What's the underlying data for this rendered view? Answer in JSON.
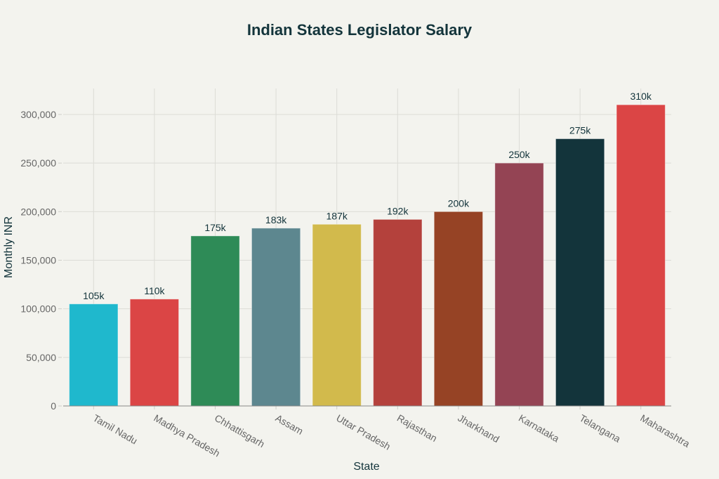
{
  "chart_data": {
    "type": "bar",
    "title": "Indian States Legislator Salary",
    "xlabel": "State",
    "ylabel": "Monthly INR",
    "categories": [
      "Tamil Nadu",
      "Madhya Pradesh",
      "Chhattisgarh",
      "Assam",
      "Uttar Pradesh",
      "Rajasthan",
      "Jharkhand",
      "Karnataka",
      "Telangana",
      "Maharashtra"
    ],
    "values": [
      105000,
      110000,
      175000,
      183000,
      187000,
      192000,
      200000,
      250000,
      275000,
      310000
    ],
    "data_labels": [
      "105k",
      "110k",
      "175k",
      "183k",
      "187k",
      "192k",
      "200k",
      "250k",
      "275k",
      "310k"
    ],
    "colors": [
      "#1fb8cd",
      "#db4545",
      "#2e8b57",
      "#5d878f",
      "#d2ba4c",
      "#b4413c",
      "#964325",
      "#944454",
      "#13343b",
      "#db4545"
    ],
    "ylim": [
      0,
      330000
    ],
    "yticks": [
      0,
      50000,
      100000,
      150000,
      200000,
      250000,
      300000
    ],
    "ytick_labels": [
      "0",
      "50,000",
      "100,000",
      "150,000",
      "200,000",
      "250,000",
      "300,000"
    ],
    "grid": true,
    "legend": "none"
  }
}
